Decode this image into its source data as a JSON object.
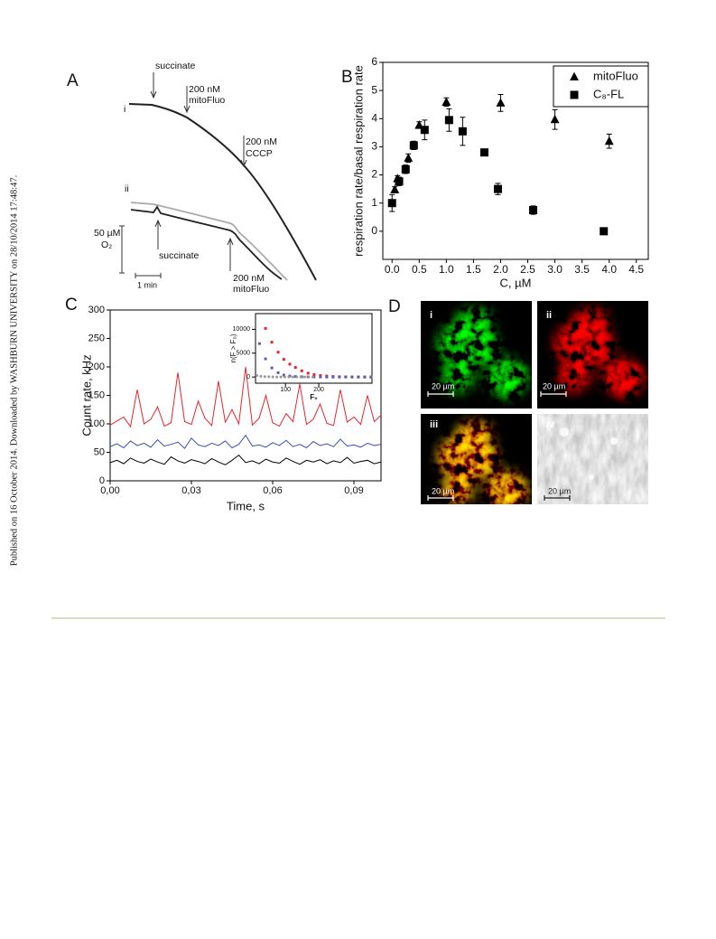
{
  "side_note": "Published on 16 October 2014. Downloaded by WASHBURN UNIVERSITY on 28/10/2014 17:48:47.",
  "panel_a": {
    "label": "A",
    "traces": [
      "i",
      "ii"
    ],
    "annotations": [
      "succinate",
      "200 nM",
      "mitoFluo",
      "200 nM",
      "CCCP",
      "succinate",
      "200 nM",
      "mitoFluo"
    ],
    "scale_y": [
      "50 µM",
      "O₂"
    ],
    "scale_x": "1 min"
  },
  "panel_b": {
    "label": "B"
  },
  "panel_c": {
    "label": "C"
  },
  "panel_d": {
    "label": "D",
    "images": [
      {
        "label": "i",
        "scale": "20 µm"
      },
      {
        "label": "ii",
        "scale": "20 µm"
      },
      {
        "label": "iii",
        "scale": "20 µm"
      },
      {
        "label": "iv",
        "scale": "20 µm"
      }
    ]
  },
  "chart_data": [
    {
      "type": "scatter",
      "x_label": "C, µM",
      "y_label": "respiration rate/basal respiration rate",
      "xlim": [
        -0.17,
        4.72
      ],
      "ylim": [
        -1,
        6
      ],
      "xticks": [
        {
          "value": 0,
          "label": "0.0"
        },
        0.5,
        {
          "value": 1,
          "label": "1.0"
        },
        1.5,
        {
          "value": 2,
          "label": "2.0"
        },
        2.5,
        {
          "value": 3,
          "label": "3.0"
        },
        3.5,
        {
          "value": 4,
          "label": "4.0"
        },
        4.5
      ],
      "yticks": [
        0,
        1,
        2,
        3,
        4,
        5,
        6
      ],
      "legend": "top right",
      "series": [
        {
          "name": "mitoFluo",
          "color": "#000000",
          "marker": "triangle",
          "x": [
            0.05,
            0.1,
            0.3,
            0.5,
            1.0,
            2.0,
            3.0,
            4.0
          ],
          "values": [
            1.48,
            1.87,
            2.6,
            3.77,
            4.59,
            4.56,
            3.97,
            3.2
          ],
          "errors": [
            0.1,
            0.1,
            0.15,
            0.12,
            0.15,
            0.3,
            0.35,
            0.25
          ]
        },
        {
          "name": "C₈-FL",
          "color": "#000000",
          "marker": "square",
          "x": [
            0,
            0.13,
            0.25,
            0.4,
            0.6,
            1.05,
            1.3,
            1.7,
            1.95,
            2.6,
            3.9
          ],
          "values": [
            1.0,
            1.77,
            2.2,
            3.05,
            3.6,
            3.95,
            3.55,
            2.8,
            1.5,
            0.75,
            0.0
          ],
          "errors": [
            0.3,
            0.15,
            0.15,
            0.15,
            0.35,
            0.4,
            0.5,
            0.1,
            0.2,
            0.15,
            0.08
          ]
        }
      ]
    },
    {
      "type": "line",
      "x_label": "Time, s",
      "y_label": "Count rate, kHz",
      "xlim": [
        0,
        0.1
      ],
      "ylim": [
        0,
        300
      ],
      "xticks": [
        {
          "value": 0,
          "label": "0,00"
        },
        {
          "value": 0.03,
          "label": "0,03"
        },
        {
          "value": 0.06,
          "label": "0,06"
        },
        {
          "value": 0.09,
          "label": "0,09"
        }
      ],
      "yticks": [
        0,
        50,
        100,
        150,
        200,
        250,
        300
      ],
      "x": [
        0,
        0.0025,
        0.005,
        0.0075,
        0.01,
        0.0125,
        0.015,
        0.0175,
        0.02,
        0.0225,
        0.025,
        0.0275,
        0.03,
        0.0325,
        0.035,
        0.0375,
        0.04,
        0.0425,
        0.045,
        0.0475,
        0.05,
        0.0525,
        0.055,
        0.0575,
        0.06,
        0.0625,
        0.065,
        0.0675,
        0.07,
        0.0725,
        0.075,
        0.0775,
        0.08,
        0.0825,
        0.085,
        0.0875,
        0.09,
        0.0925,
        0.095,
        0.0975,
        0.1
      ],
      "series": [
        {
          "color": "#e8232a",
          "values": [
            98,
            105,
            112,
            95,
            160,
            100,
            108,
            130,
            96,
            102,
            190,
            104,
            99,
            140,
            110,
            97,
            175,
            103,
            125,
            100,
            200,
            98,
            110,
            150,
            102,
            96,
            118,
            104,
            170,
            99,
            108,
            135,
            101,
            97,
            160,
            103,
            112,
            99,
            150,
            104,
            115
          ]
        },
        {
          "color": "#3a4fb0",
          "values": [
            60,
            65,
            58,
            70,
            62,
            66,
            59,
            72,
            61,
            64,
            68,
            57,
            75,
            63,
            60,
            66,
            62,
            70,
            58,
            64,
            80,
            61,
            63,
            59,
            67,
            62,
            71,
            60,
            64,
            58,
            69,
            62,
            65,
            60,
            73,
            61,
            63,
            59,
            66,
            62,
            64
          ]
        },
        {
          "color": "#000000",
          "values": [
            32,
            36,
            30,
            40,
            34,
            31,
            38,
            33,
            29,
            42,
            35,
            31,
            37,
            34,
            30,
            39,
            33,
            28,
            36,
            45,
            32,
            35,
            30,
            38,
            33,
            31,
            40,
            34,
            29,
            36,
            33,
            37,
            30,
            35,
            32,
            41,
            31,
            34,
            36,
            30,
            33
          ]
        }
      ]
    },
    {
      "type": "scatter",
      "x_label": "F₀",
      "y_label": "n(F > F₀)",
      "xlim": [
        10,
        360
      ],
      "ylim": [
        -1300,
        13300
      ],
      "xticks": [
        100,
        200
      ],
      "yticks": [
        0,
        5000,
        10000
      ],
      "series": [
        {
          "color": "#e8232a",
          "marker": "square",
          "x": [
            40,
            59,
            78,
            95,
            113,
            130,
            149,
            168,
            186,
            205,
            224,
            243,
            262,
            281,
            300,
            319,
            338,
            357
          ],
          "values": [
            10200,
            7300,
            5200,
            3700,
            2700,
            2000,
            1300,
            800,
            500,
            300,
            200,
            100,
            50,
            30,
            20,
            10,
            5,
            0
          ]
        },
        {
          "color": "#5a5fb0",
          "marker": "square",
          "x": [
            22,
            40,
            59,
            78,
            95,
            113,
            130,
            149,
            168,
            186,
            205,
            224,
            243,
            262,
            281,
            300,
            319,
            338,
            357
          ],
          "values": [
            7000,
            3800,
            1900,
            900,
            400,
            200,
            100,
            50,
            20,
            10,
            5,
            0,
            0,
            0,
            0,
            0,
            0,
            0,
            0
          ]
        },
        {
          "color": "#999999",
          "marker": "circle",
          "x": [
            14,
            26,
            38,
            50,
            62,
            74,
            86,
            98,
            110,
            122,
            134,
            146,
            158,
            170,
            182
          ],
          "values": [
            300,
            150,
            80,
            40,
            20,
            10,
            5,
            0,
            0,
            0,
            0,
            0,
            0,
            0,
            0
          ]
        }
      ]
    }
  ]
}
